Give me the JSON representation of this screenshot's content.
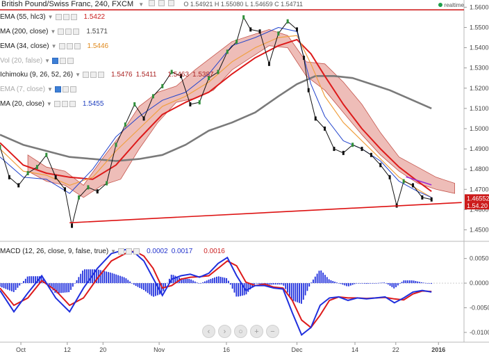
{
  "header": {
    "title": "British Pound/Swiss Franc, 240, FXCM",
    "ohlc": "O 1.54921 H 1.55080 L 1.54659 C 1.54711",
    "realtime": "realtime"
  },
  "studies": [
    {
      "name": "EMA (55, hlc3)",
      "values": [
        "1.5422"
      ],
      "colors": [
        "#cc2222"
      ]
    },
    {
      "name": "MA (200, close)",
      "values": [
        "1.5171"
      ],
      "colors": [
        "#444444"
      ]
    },
    {
      "name": "EMA (34, close)",
      "values": [
        "1.5446"
      ],
      "colors": [
        "#e08a1e"
      ]
    },
    {
      "name": "Vol (20, false)",
      "values": [],
      "colors": [],
      "dim": true
    },
    {
      "name": "Ichimoku (9, 26, 52, 26)",
      "values": [
        "1.5476",
        "1.5411",
        "1.5463",
        "1.5387"
      ],
      "colors": [
        "#aa2222",
        "#aa2222",
        "#aa2222",
        "#aa2222"
      ]
    },
    {
      "name": "EMA (7, close)",
      "values": [],
      "colors": [],
      "dim": true
    },
    {
      "name": "MA (20, close)",
      "values": [
        "1.5455"
      ],
      "colors": [
        "#1f3fbf"
      ]
    }
  ],
  "macd_legend": {
    "name": "MACD (12, 26, close, 9, false, true)",
    "values": [
      "0.0002",
      "0.0017",
      "0.0016"
    ],
    "colors": [
      "#2233cc",
      "#2233cc",
      "#cc2222"
    ]
  },
  "price_badges": {
    "last": "1.46552",
    "ema": "1.54.20"
  },
  "nav_buttons": [
    "‹",
    "›",
    "○",
    "+",
    "−"
  ],
  "chart_data": {
    "type": "line",
    "price_axis": {
      "ylim": [
        1.445,
        1.5615
      ],
      "ticks": [
        1.56,
        1.55,
        1.54,
        1.53,
        1.52,
        1.51,
        1.5,
        1.49,
        1.48,
        1.47,
        1.46,
        1.45
      ],
      "tick_labels": [
        "1.5600",
        "1.5500",
        "1.5400",
        "1.5300",
        "1.5200",
        "1.5100",
        "1.5000",
        "1.4900",
        "1.4800",
        "1.4700",
        "1.4600",
        "1.4500"
      ]
    },
    "macd_axis": {
      "ylim": [
        -0.0117,
        0.0082
      ],
      "ticks": [
        0.005,
        0.0,
        -0.005,
        -0.01
      ],
      "tick_labels": [
        "0.0050",
        "0.0000",
        "-0.0050",
        "-0.0100"
      ]
    },
    "x_axis": {
      "tick_labels": [
        "Oct",
        "12",
        "20",
        "Nov",
        "16",
        "Dec",
        "14",
        "22",
        "2016"
      ],
      "tick_t": [
        0.045,
        0.145,
        0.222,
        0.343,
        0.488,
        0.64,
        0.765,
        0.853,
        0.945
      ]
    },
    "series": [
      {
        "name": "Price",
        "t": [
          0.0,
          0.02,
          0.04,
          0.06,
          0.08,
          0.1,
          0.12,
          0.14,
          0.155,
          0.17,
          0.19,
          0.21,
          0.23,
          0.25,
          0.27,
          0.29,
          0.31,
          0.33,
          0.35,
          0.37,
          0.39,
          0.41,
          0.43,
          0.45,
          0.47,
          0.49,
          0.51,
          0.525,
          0.54,
          0.56,
          0.58,
          0.6,
          0.62,
          0.64,
          0.655,
          0.665,
          0.68,
          0.7,
          0.72,
          0.74,
          0.76,
          0.78,
          0.8,
          0.82,
          0.84,
          0.855,
          0.87,
          0.89,
          0.91,
          0.93
        ],
        "values": [
          1.491,
          1.476,
          1.472,
          1.478,
          1.481,
          1.487,
          1.476,
          1.47,
          1.452,
          1.466,
          1.471,
          1.469,
          1.473,
          1.492,
          1.502,
          1.512,
          1.505,
          1.516,
          1.521,
          1.528,
          1.526,
          1.512,
          1.513,
          1.525,
          1.528,
          1.538,
          1.543,
          1.555,
          1.549,
          1.548,
          1.532,
          1.547,
          1.553,
          1.549,
          1.535,
          1.519,
          1.505,
          1.5,
          1.49,
          1.488,
          1.492,
          1.49,
          1.487,
          1.482,
          1.476,
          1.462,
          1.474,
          1.472,
          1.466,
          1.465
        ]
      },
      {
        "name": "MA 200",
        "t": [
          0.0,
          0.05,
          0.1,
          0.15,
          0.2,
          0.25,
          0.3,
          0.35,
          0.4,
          0.45,
          0.5,
          0.55,
          0.6,
          0.64,
          0.68,
          0.72,
          0.76,
          0.8,
          0.84,
          0.88,
          0.93
        ],
        "values": [
          1.497,
          1.492,
          1.489,
          1.486,
          1.485,
          1.484,
          1.485,
          1.487,
          1.492,
          1.499,
          1.503,
          1.508,
          1.516,
          1.522,
          1.526,
          1.526,
          1.525,
          1.522,
          1.519,
          1.515,
          1.51
        ]
      },
      {
        "name": "EMA 55",
        "t": [
          0.0,
          0.05,
          0.1,
          0.15,
          0.2,
          0.25,
          0.3,
          0.35,
          0.4,
          0.45,
          0.5,
          0.55,
          0.6,
          0.64,
          0.67,
          0.7,
          0.74,
          0.78,
          0.82,
          0.86,
          0.9,
          0.93
        ],
        "values": [
          1.493,
          1.482,
          1.478,
          1.476,
          1.475,
          1.482,
          1.495,
          1.507,
          1.513,
          1.518,
          1.527,
          1.535,
          1.541,
          1.544,
          1.537,
          1.526,
          1.512,
          1.5,
          1.49,
          1.481,
          1.474,
          1.469
        ]
      },
      {
        "name": "EMA 34",
        "t": [
          0.0,
          0.05,
          0.1,
          0.15,
          0.2,
          0.25,
          0.3,
          0.35,
          0.4,
          0.45,
          0.5,
          0.55,
          0.6,
          0.64,
          0.67,
          0.7,
          0.74,
          0.78,
          0.82,
          0.86,
          0.9,
          0.93
        ],
        "values": [
          1.49,
          1.479,
          1.477,
          1.472,
          1.476,
          1.489,
          1.5,
          1.511,
          1.516,
          1.523,
          1.533,
          1.54,
          1.545,
          1.546,
          1.532,
          1.516,
          1.503,
          1.494,
          1.485,
          1.476,
          1.47,
          1.466
        ]
      },
      {
        "name": "MA 20",
        "t": [
          0.0,
          0.05,
          0.1,
          0.15,
          0.2,
          0.25,
          0.3,
          0.35,
          0.4,
          0.45,
          0.5,
          0.55,
          0.6,
          0.64,
          0.67,
          0.7,
          0.74,
          0.78,
          0.82,
          0.86,
          0.9,
          0.93
        ],
        "values": [
          1.486,
          1.476,
          1.475,
          1.468,
          1.48,
          1.496,
          1.506,
          1.514,
          1.518,
          1.527,
          1.541,
          1.545,
          1.55,
          1.548,
          1.522,
          1.506,
          1.494,
          1.49,
          1.484,
          1.474,
          1.469,
          1.466
        ]
      },
      {
        "name": "Trendline",
        "t": [
          0.15,
          0.995
        ],
        "values": [
          1.4535,
          1.4635
        ]
      },
      {
        "name": "Channel",
        "t": [
          0.875,
          0.93
        ],
        "values": [
          1.4762,
          1.4722
        ]
      }
    ],
    "cloud": {
      "t": [
        0.06,
        0.1,
        0.14,
        0.18,
        0.22,
        0.26,
        0.3,
        0.34,
        0.38,
        0.42,
        0.46,
        0.5,
        0.54,
        0.58,
        0.62,
        0.66,
        0.7,
        0.74,
        0.78,
        0.82,
        0.86,
        0.9,
        0.94,
        0.98
      ],
      "upper": [
        1.487,
        1.481,
        1.479,
        1.472,
        1.485,
        1.497,
        1.511,
        1.518,
        1.521,
        1.529,
        1.536,
        1.543,
        1.546,
        1.549,
        1.546,
        1.533,
        1.532,
        1.523,
        1.512,
        1.498,
        1.486,
        1.481,
        1.476,
        1.473
      ],
      "lower": [
        1.479,
        1.474,
        1.472,
        1.466,
        1.472,
        1.475,
        1.49,
        1.503,
        1.513,
        1.515,
        1.519,
        1.529,
        1.535,
        1.541,
        1.54,
        1.526,
        1.519,
        1.508,
        1.497,
        1.487,
        1.479,
        1.473,
        1.47,
        1.468
      ]
    },
    "macd": {
      "t": [
        0.0,
        0.03,
        0.06,
        0.09,
        0.12,
        0.15,
        0.18,
        0.21,
        0.24,
        0.27,
        0.29,
        0.31,
        0.33,
        0.35,
        0.37,
        0.39,
        0.41,
        0.43,
        0.45,
        0.47,
        0.49,
        0.51,
        0.53,
        0.55,
        0.57,
        0.59,
        0.61,
        0.63,
        0.65,
        0.67,
        0.69,
        0.71,
        0.73,
        0.75,
        0.77,
        0.79,
        0.81,
        0.83,
        0.85,
        0.87,
        0.89,
        0.91,
        0.93
      ],
      "line": [
        -0.0015,
        -0.0058,
        -0.002,
        0.0015,
        -0.003,
        -0.0058,
        -0.001,
        0.003,
        0.006,
        0.0068,
        0.0062,
        0.0045,
        0.001,
        -0.0025,
        0.0008,
        0.0015,
        0.0018,
        0.0012,
        0.002,
        0.004,
        0.0052,
        0.0015,
        -0.0015,
        -0.0005,
        -0.0005,
        -0.001,
        -0.0012,
        -0.006,
        -0.0105,
        -0.009,
        -0.0045,
        -0.003,
        -0.0028,
        -0.0035,
        -0.003,
        -0.0032,
        -0.003,
        -0.0028,
        -0.004,
        -0.003,
        -0.0018,
        -0.0015,
        -0.0018
      ],
      "signal": [
        -0.001,
        -0.0045,
        -0.003,
        0.0005,
        -0.0015,
        -0.0045,
        -0.003,
        0.001,
        0.0045,
        0.006,
        0.0065,
        0.0055,
        0.003,
        -0.001,
        -0.0005,
        0.0008,
        0.0012,
        0.0013,
        0.0015,
        0.003,
        0.0045,
        0.0035,
        0.0002,
        -0.0005,
        -0.0002,
        -0.0008,
        -0.001,
        -0.0035,
        -0.0075,
        -0.009,
        -0.0065,
        -0.0035,
        -0.0028,
        -0.003,
        -0.003,
        -0.0031,
        -0.003,
        -0.0029,
        -0.0032,
        -0.0034,
        -0.0022,
        -0.0016,
        -0.0017
      ],
      "histogram_color": "#1f2fdd"
    }
  }
}
